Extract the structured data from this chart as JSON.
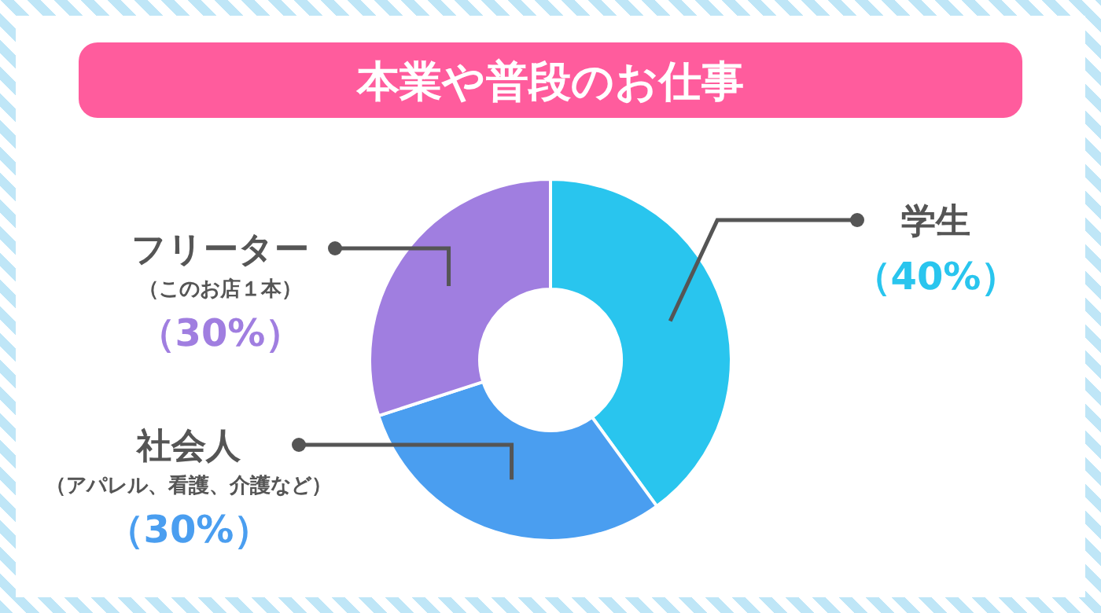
{
  "chart_data": {
    "type": "donut",
    "title": "本業や普段のお仕事",
    "categories": [
      "学生",
      "社会人",
      "フリーター"
    ],
    "values": [
      40,
      30,
      30
    ],
    "colors": [
      "#29c5ee",
      "#4a9ef0",
      "#a07ee0"
    ],
    "value_labels": [
      "（40%）",
      "（30%）",
      "（30%）"
    ],
    "annotations": [
      "（このお店１本）",
      "（アパレル、看護、介護など）"
    ]
  }
}
